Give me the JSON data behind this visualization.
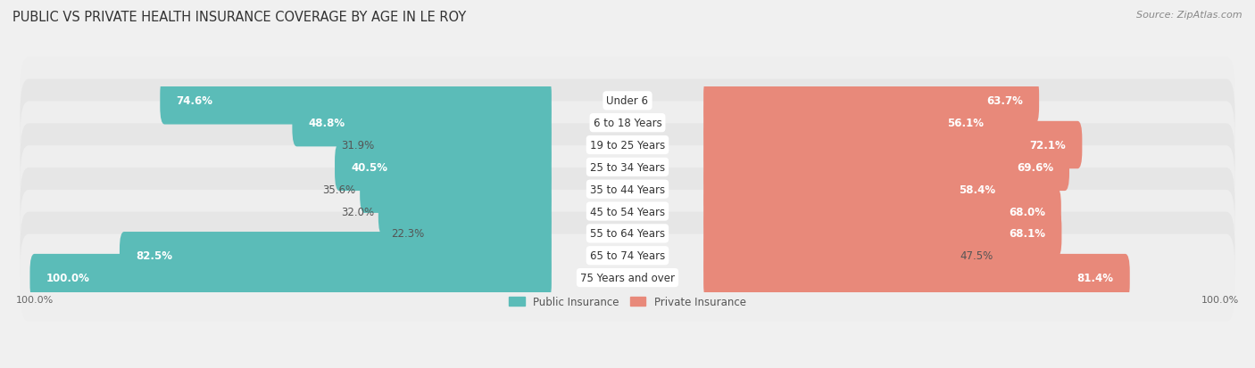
{
  "title": "PUBLIC VS PRIVATE HEALTH INSURANCE COVERAGE BY AGE IN LE ROY",
  "source": "Source: ZipAtlas.com",
  "categories": [
    "Under 6",
    "6 to 18 Years",
    "19 to 25 Years",
    "25 to 34 Years",
    "35 to 44 Years",
    "45 to 54 Years",
    "55 to 64 Years",
    "65 to 74 Years",
    "75 Years and over"
  ],
  "public_values": [
    74.6,
    48.8,
    31.9,
    40.5,
    35.6,
    32.0,
    22.3,
    82.5,
    100.0
  ],
  "private_values": [
    63.7,
    56.1,
    72.1,
    69.6,
    58.4,
    68.0,
    68.1,
    47.5,
    81.4
  ],
  "public_color": "#5bbcb8",
  "private_color": "#e8897a",
  "bg_color": "#f0f0f0",
  "row_color_light": "#efefef",
  "row_color_mid": "#e3e3e3",
  "max_value": 100.0,
  "title_fontsize": 10.5,
  "bar_label_fontsize": 8.5,
  "cat_label_fontsize": 8.5,
  "tick_fontsize": 8,
  "source_fontsize": 8,
  "legend_fontsize": 8.5
}
